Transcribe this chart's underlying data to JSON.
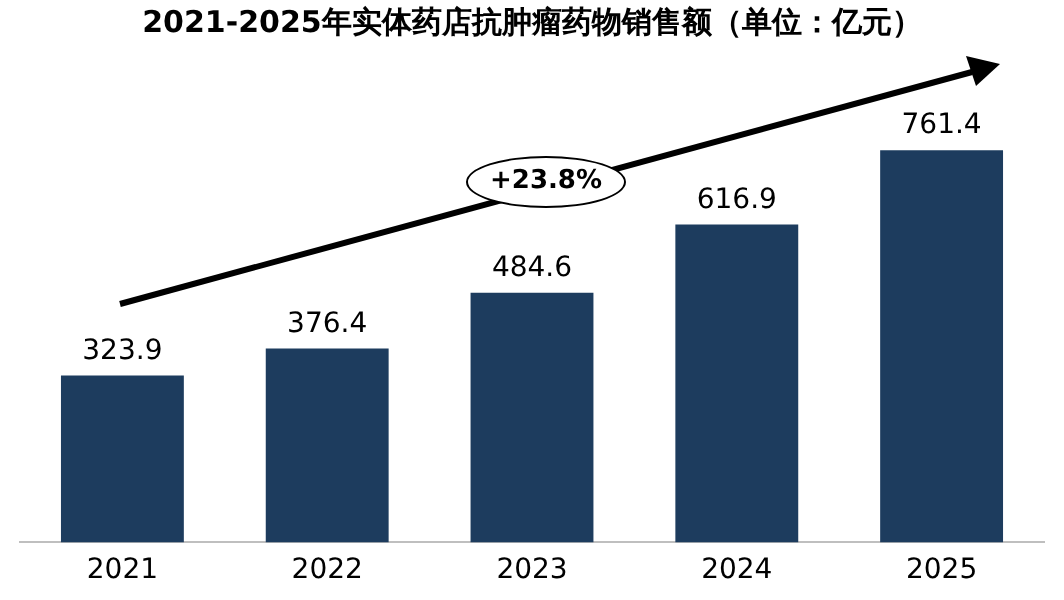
{
  "chart_data": {
    "type": "bar",
    "title": "2021-2025年实体药店抗肿瘤药物销售额（单位：亿元）",
    "categories": [
      "2021",
      "2022",
      "2023",
      "2024",
      "2025"
    ],
    "values": [
      323.9,
      376.4,
      484.6,
      616.9,
      761.4
    ],
    "color": "#1d3c5e",
    "data_labels": true,
    "annotations": [
      "+23.8%"
    ]
  }
}
